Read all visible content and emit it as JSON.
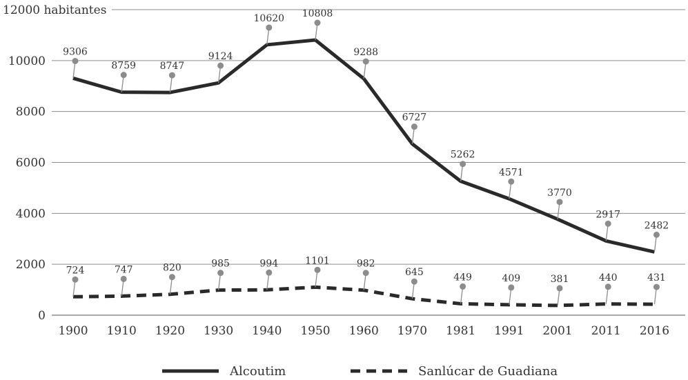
{
  "chart_data": {
    "type": "line",
    "categories": [
      "1900",
      "1910",
      "1920",
      "1930",
      "1940",
      "1950",
      "1960",
      "1970",
      "1981",
      "1991",
      "2001",
      "2011",
      "2016"
    ],
    "series": [
      {
        "name": "Alcoutim",
        "values": [
          9306,
          8759,
          8747,
          9124,
          10620,
          10808,
          9288,
          6727,
          5262,
          4571,
          3770,
          2917,
          2482
        ],
        "color": "#2a2a2a",
        "style": "solid"
      },
      {
        "name": "Sanlúcar de Guadiana",
        "values": [
          724,
          747,
          820,
          985,
          994,
          1101,
          982,
          645,
          449,
          409,
          381,
          440,
          431
        ],
        "color": "#2a2a2a",
        "style": "dashed"
      }
    ],
    "ylim": [
      0,
      12000
    ],
    "yticks": [
      "0",
      "2000",
      "4000",
      "6000",
      "8000",
      "10000",
      "12000 habitantes"
    ],
    "ytick_values": [
      0,
      2000,
      4000,
      6000,
      8000,
      10000,
      12000
    ],
    "grid": true,
    "legend_position": "bottom",
    "marker_color": "#8c8c8c",
    "grid_color": "#8c8c8c"
  }
}
